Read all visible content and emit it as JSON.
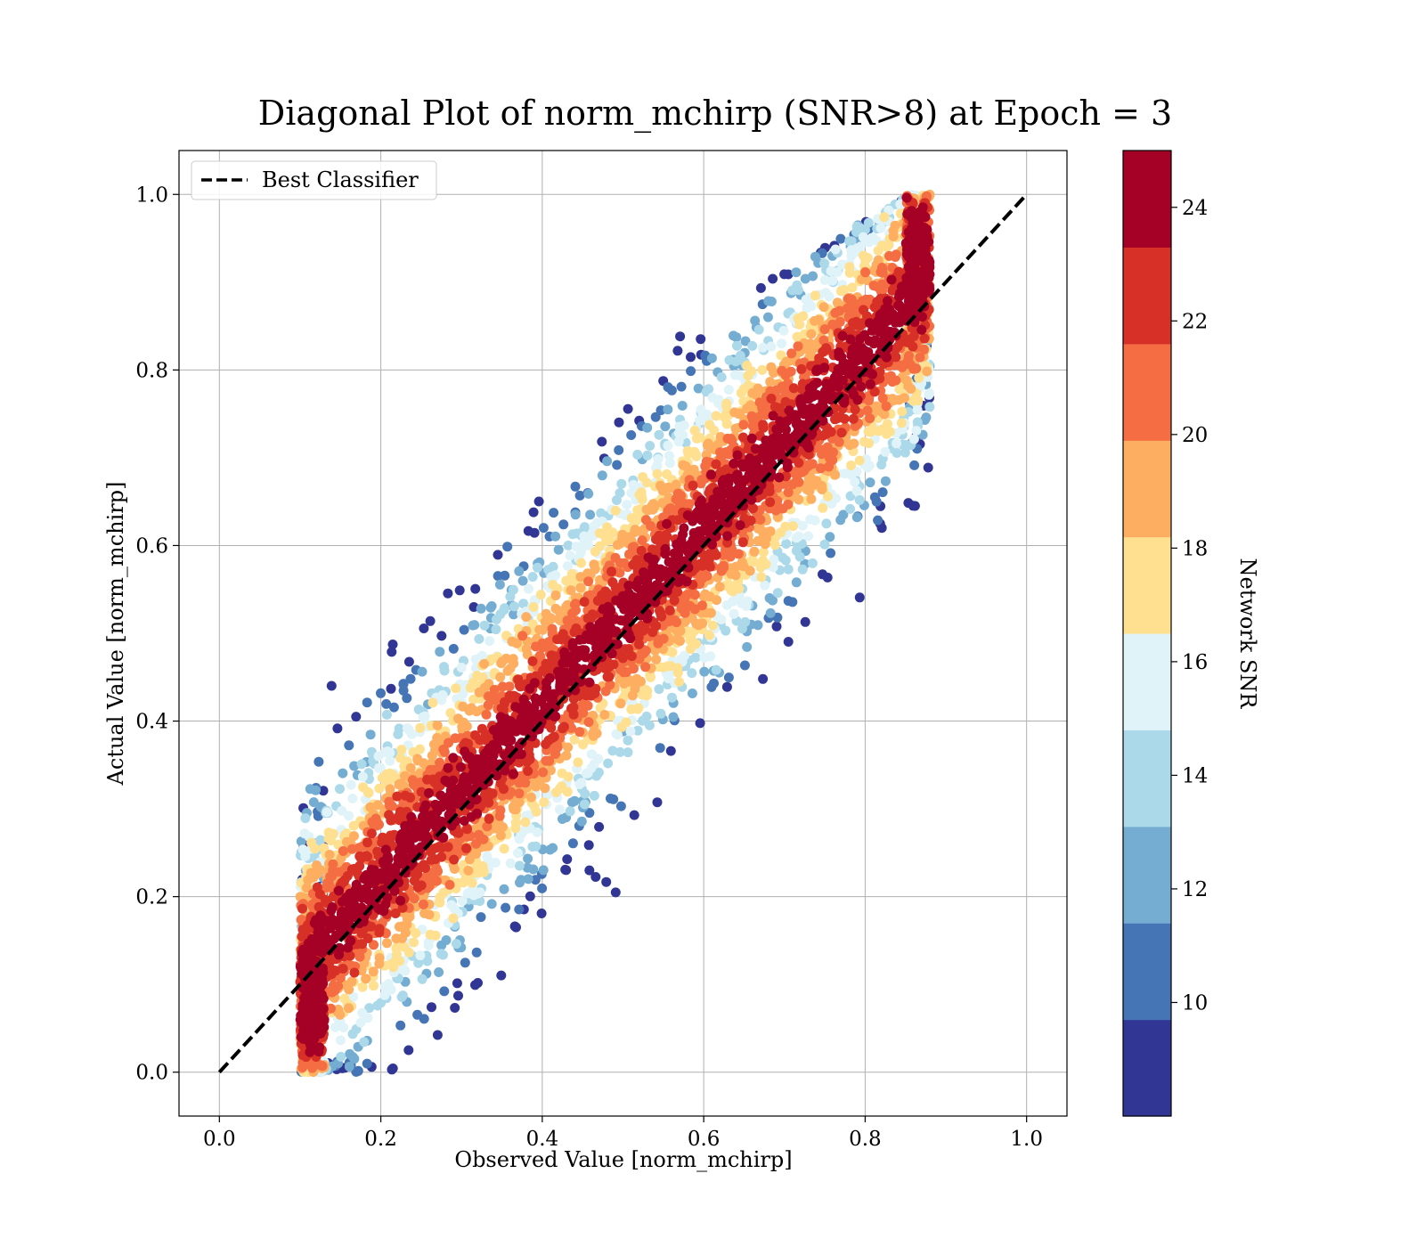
{
  "chart_data": {
    "type": "scatter",
    "title": "Diagonal Plot of norm_mchirp (SNR>8) at Epoch = 3",
    "xlabel": "Observed Value [norm_mchirp]",
    "ylabel": "Actual Value [norm_mchirp]",
    "xlim": [
      -0.05,
      1.05
    ],
    "ylim": [
      -0.05,
      1.05
    ],
    "xticks": [
      "0.0",
      "0.2",
      "0.4",
      "0.6",
      "0.8",
      "1.0"
    ],
    "yticks": [
      "0.0",
      "0.2",
      "0.4",
      "0.6",
      "0.8",
      "1.0"
    ],
    "grid": true,
    "legend": {
      "position": "top-left",
      "entries": [
        {
          "label": "Best Classifier",
          "style": "dashed-black-line"
        }
      ]
    },
    "reference_line": {
      "label": "Best Classifier",
      "x": [
        0.0,
        1.0
      ],
      "y": [
        0.0,
        1.0
      ],
      "color": "#000000"
    },
    "colorbar": {
      "label": "Network SNR",
      "range": [
        8,
        25
      ],
      "ticks": [
        "10",
        "12",
        "14",
        "16",
        "18",
        "20",
        "22",
        "24"
      ],
      "colors": [
        "#313695",
        "#4575b4",
        "#74add1",
        "#abd9e9",
        "#e0f3f8",
        "#fee090",
        "#fdae61",
        "#f46d43",
        "#d73027",
        "#a50026"
      ]
    },
    "point_distribution": {
      "description": "dense scatter of samples, high-SNR points clustered on the diagonal band, low-SNR points spread off-diagonal",
      "band_slope": 1.0,
      "approx_points": 6000
    }
  }
}
